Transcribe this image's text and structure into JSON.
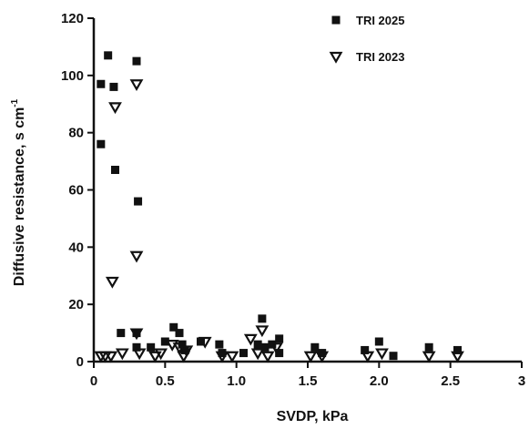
{
  "chart_data": {
    "type": "scatter",
    "xlabel": "SVDP, kPa",
    "ylabel": "Diffusive resistance, s cm",
    "ylabel_superscript": "-1",
    "xlim": [
      0,
      3
    ],
    "ylim": [
      0,
      120
    ],
    "x_ticks": [
      {
        "value": 0,
        "label": "0"
      },
      {
        "value": 0.5,
        "label": "0.5"
      },
      {
        "value": 1.0,
        "label": "1.0"
      },
      {
        "value": 1.5,
        "label": "1.5"
      },
      {
        "value": 2.0,
        "label": "2.0"
      },
      {
        "value": 2.5,
        "label": "2.5"
      },
      {
        "value": 3,
        "label": "3"
      }
    ],
    "y_ticks": [
      {
        "value": 0,
        "label": "0"
      },
      {
        "value": 20,
        "label": "20"
      },
      {
        "value": 40,
        "label": "40"
      },
      {
        "value": 60,
        "label": "60"
      },
      {
        "value": 80,
        "label": "80"
      },
      {
        "value": 100,
        "label": "100"
      },
      {
        "value": 120,
        "label": "120"
      }
    ],
    "grid": false,
    "legend_position": "top-right",
    "series": [
      {
        "name": "TRI 2025",
        "marker": "square",
        "color": "#111111",
        "points": [
          {
            "x": 0.05,
            "y": 97
          },
          {
            "x": 0.05,
            "y": 76
          },
          {
            "x": 0.1,
            "y": 107
          },
          {
            "x": 0.14,
            "y": 96
          },
          {
            "x": 0.15,
            "y": 67
          },
          {
            "x": 0.3,
            "y": 105
          },
          {
            "x": 0.31,
            "y": 56
          },
          {
            "x": 0.19,
            "y": 10
          },
          {
            "x": 0.3,
            "y": 10
          },
          {
            "x": 0.3,
            "y": 5
          },
          {
            "x": 0.4,
            "y": 5
          },
          {
            "x": 0.5,
            "y": 7
          },
          {
            "x": 0.56,
            "y": 12
          },
          {
            "x": 0.6,
            "y": 10
          },
          {
            "x": 0.62,
            "y": 6
          },
          {
            "x": 0.64,
            "y": 4
          },
          {
            "x": 0.75,
            "y": 7
          },
          {
            "x": 0.88,
            "y": 6
          },
          {
            "x": 0.9,
            "y": 3
          },
          {
            "x": 1.05,
            "y": 3
          },
          {
            "x": 1.15,
            "y": 6
          },
          {
            "x": 1.18,
            "y": 15
          },
          {
            "x": 1.2,
            "y": 5
          },
          {
            "x": 1.25,
            "y": 6
          },
          {
            "x": 1.3,
            "y": 8
          },
          {
            "x": 1.3,
            "y": 3
          },
          {
            "x": 1.55,
            "y": 5
          },
          {
            "x": 1.6,
            "y": 3
          },
          {
            "x": 1.9,
            "y": 4
          },
          {
            "x": 2.0,
            "y": 7
          },
          {
            "x": 2.1,
            "y": 2
          },
          {
            "x": 2.35,
            "y": 5
          },
          {
            "x": 2.55,
            "y": 4
          }
        ]
      },
      {
        "name": "TRI 2023",
        "marker": "triangle-down",
        "color": "#111111",
        "points": [
          {
            "x": 0.05,
            "y": 2
          },
          {
            "x": 0.08,
            "y": 2
          },
          {
            "x": 0.12,
            "y": 2
          },
          {
            "x": 0.15,
            "y": 89
          },
          {
            "x": 0.13,
            "y": 28
          },
          {
            "x": 0.3,
            "y": 97
          },
          {
            "x": 0.3,
            "y": 37
          },
          {
            "x": 0.2,
            "y": 3
          },
          {
            "x": 0.3,
            "y": 10
          },
          {
            "x": 0.32,
            "y": 3
          },
          {
            "x": 0.43,
            "y": 2
          },
          {
            "x": 0.47,
            "y": 3
          },
          {
            "x": 0.55,
            "y": 6
          },
          {
            "x": 0.6,
            "y": 5
          },
          {
            "x": 0.65,
            "y": 4
          },
          {
            "x": 0.63,
            "y": 2
          },
          {
            "x": 0.78,
            "y": 7
          },
          {
            "x": 0.9,
            "y": 2
          },
          {
            "x": 0.97,
            "y": 2
          },
          {
            "x": 1.1,
            "y": 8
          },
          {
            "x": 1.15,
            "y": 3
          },
          {
            "x": 1.18,
            "y": 11
          },
          {
            "x": 1.22,
            "y": 2
          },
          {
            "x": 1.28,
            "y": 5
          },
          {
            "x": 1.52,
            "y": 2
          },
          {
            "x": 1.6,
            "y": 2
          },
          {
            "x": 1.92,
            "y": 2
          },
          {
            "x": 2.02,
            "y": 3
          },
          {
            "x": 2.35,
            "y": 2
          },
          {
            "x": 2.55,
            "y": 2
          }
        ]
      }
    ]
  }
}
